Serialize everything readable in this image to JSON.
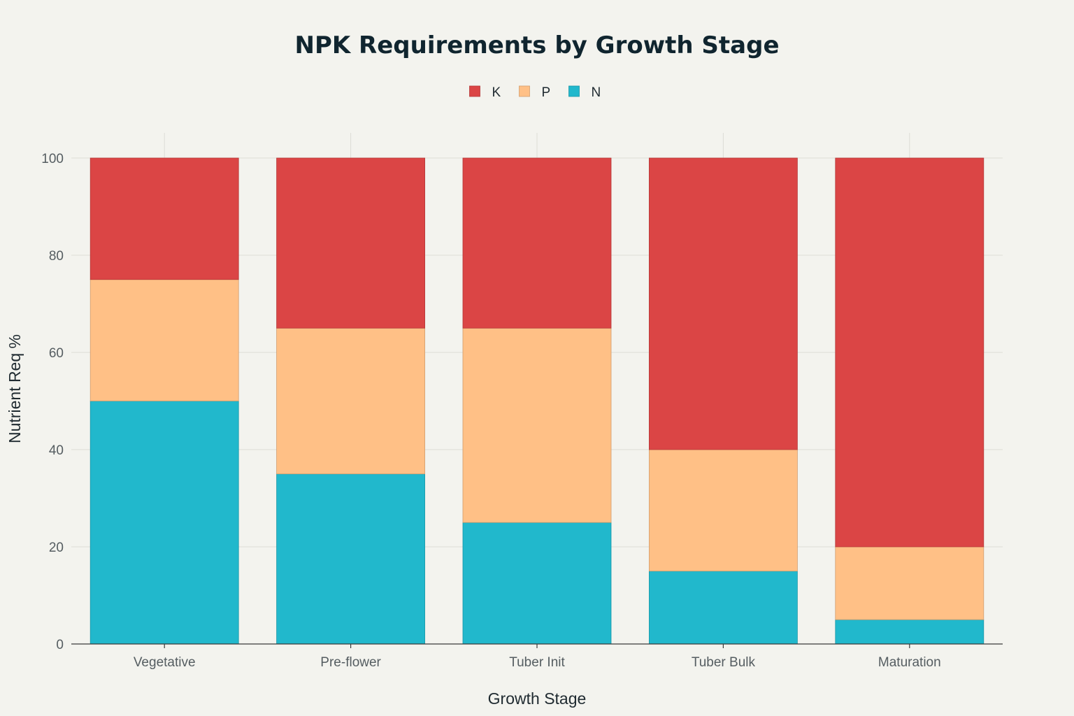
{
  "chart_data": {
    "type": "bar",
    "stacked": true,
    "title": "NPK Requirements by Growth Stage",
    "xlabel": "Growth Stage",
    "ylabel": "Nutrient Req %",
    "ylim": [
      0,
      100
    ],
    "yticks": [
      0,
      20,
      40,
      60,
      80,
      100
    ],
    "categories": [
      "Vegetative",
      "Pre-flower",
      "Tuber Init",
      "Tuber Bulk",
      "Maturation"
    ],
    "series": [
      {
        "name": "N",
        "color": "#21b8cc",
        "values": [
          50,
          35,
          25,
          15,
          5
        ]
      },
      {
        "name": "P",
        "color": "#ffc086",
        "values": [
          25,
          30,
          40,
          25,
          15
        ]
      },
      {
        "name": "K",
        "color": "#db4545",
        "values": [
          25,
          35,
          35,
          60,
          80
        ]
      }
    ],
    "legend": {
      "order": [
        "K",
        "P",
        "N"
      ],
      "position": "top-center"
    },
    "grid": true
  }
}
